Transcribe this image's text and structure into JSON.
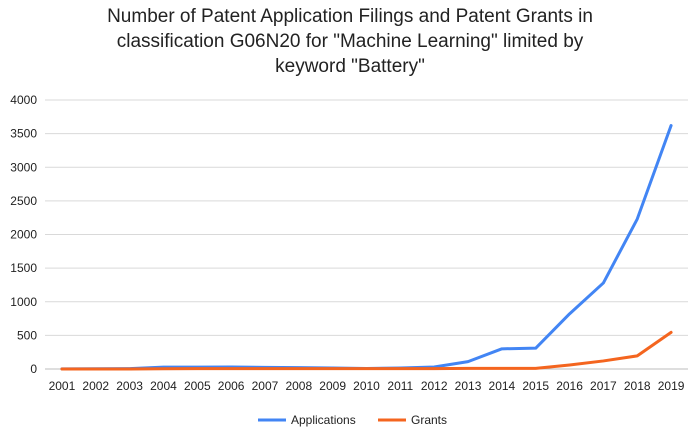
{
  "chart_data": {
    "type": "line",
    "title_lines": [
      "Number of Patent Application Filings and Patent Grants in",
      "classification G06N20 for \"Machine Learning\" limited by",
      "keyword \"Battery\""
    ],
    "categories": [
      "2001",
      "2002",
      "2003",
      "2004",
      "2005",
      "2006",
      "2007",
      "2008",
      "2009",
      "2010",
      "2011",
      "2012",
      "2013",
      "2014",
      "2015",
      "2016",
      "2017",
      "2018",
      "2019"
    ],
    "series": [
      {
        "name": "Applications",
        "color": "#4285F4",
        "values": [
          2,
          3,
          5,
          28,
          28,
          30,
          25,
          20,
          15,
          8,
          15,
          30,
          110,
          300,
          310,
          820,
          1280,
          2230,
          3620
        ]
      },
      {
        "name": "Grants",
        "color": "#F4651F",
        "values": [
          0,
          0,
          0,
          3,
          5,
          5,
          5,
          5,
          5,
          5,
          5,
          5,
          10,
          10,
          10,
          60,
          120,
          195,
          545
        ]
      }
    ],
    "y_ticks": [
      "0",
      "500",
      "1000",
      "1500",
      "2000",
      "2500",
      "3000",
      "3500",
      "4000"
    ],
    "ylim": [
      0,
      4000
    ],
    "grid": true,
    "legend": "bottom"
  }
}
